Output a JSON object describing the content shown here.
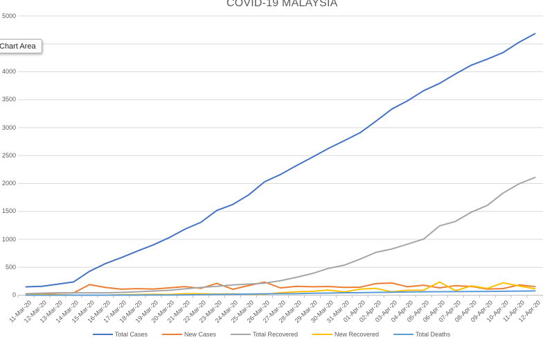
{
  "tooltip": {
    "label": "Chart Area"
  },
  "chart_data": {
    "type": "line",
    "title": "COVID-19 MALAYSIA",
    "xlabel": "",
    "ylabel": "",
    "ylim": [
      0,
      5000
    ],
    "yticks": [
      0,
      500,
      1000,
      1500,
      2000,
      2500,
      3000,
      3500,
      4000,
      4500,
      5000
    ],
    "grid": true,
    "legend_position": "bottom",
    "categories": [
      "11-Mar-20",
      "12-Mar-20",
      "13-Mar-20",
      "14-Mar-20",
      "15-Mar-20",
      "16-Mar-20",
      "17-Mar-20",
      "18-Mar-20",
      "19-Mar-20",
      "20-Mar-20",
      "21-Mar-20",
      "22-Mar-20",
      "23-Mar-20",
      "24-Mar-20",
      "25-Mar-20",
      "26-Mar-20",
      "27-Mar-20",
      "28-Mar-20",
      "29-Mar-20",
      "30-Mar-20",
      "31-Mar-20",
      "01-Apr-20",
      "02-Apr-20",
      "03-Apr-20",
      "04-Apr-20",
      "05-Apr-20",
      "06-Apr-20",
      "07-Apr-20",
      "08-Apr-20",
      "09-Apr-20",
      "10-Apr-20",
      "11-Apr-20",
      "12-Apr-20"
    ],
    "series": [
      {
        "name": "Total Cases",
        "color": "#4472C4",
        "values": [
          149,
          158,
          197,
          238,
          428,
          566,
          673,
          790,
          900,
          1030,
          1183,
          1306,
          1518,
          1624,
          1796,
          2031,
          2161,
          2320,
          2470,
          2626,
          2766,
          2908,
          3116,
          3333,
          3483,
          3662,
          3793,
          3963,
          4119,
          4228,
          4346,
          4530,
          4683
        ]
      },
      {
        "name": "New Cases",
        "color": "#ED7D31",
        "values": [
          20,
          9,
          39,
          41,
          190,
          138,
          107,
          117,
          110,
          130,
          153,
          123,
          212,
          106,
          172,
          235,
          130,
          159,
          150,
          156,
          140,
          142,
          208,
          217,
          150,
          179,
          131,
          170,
          156,
          109,
          118,
          184,
          153
        ]
      },
      {
        "name": "Total Recovered",
        "color": "#A5A5A5",
        "values": [
          26,
          35,
          42,
          42,
          42,
          42,
          49,
          60,
          75,
          87,
          114,
          139,
          159,
          183,
          199,
          215,
          259,
          320,
          388,
          479,
          537,
          645,
          767,
          827,
          915,
          1005,
          1241,
          1321,
          1487,
          1608,
          1830,
          1995,
          2108
        ]
      },
      {
        "name": "New Recovered",
        "color": "#FFC000",
        "values": [
          4,
          9,
          7,
          0,
          0,
          0,
          7,
          11,
          15,
          12,
          27,
          25,
          20,
          24,
          16,
          16,
          44,
          61,
          68,
          91,
          58,
          108,
          122,
          60,
          88,
          90,
          236,
          80,
          166,
          121,
          222,
          165,
          113
        ]
      },
      {
        "name": "Total Deaths",
        "color": "#5B9BD5",
        "values": [
          0,
          0,
          0,
          0,
          0,
          0,
          2,
          2,
          3,
          3,
          4,
          10,
          14,
          16,
          20,
          23,
          26,
          27,
          34,
          37,
          43,
          45,
          50,
          53,
          57,
          61,
          62,
          63,
          65,
          67,
          70,
          73,
          76
        ]
      }
    ],
    "axis_color": "#BFBFBF",
    "gridline_color": "#D9D9D9"
  }
}
